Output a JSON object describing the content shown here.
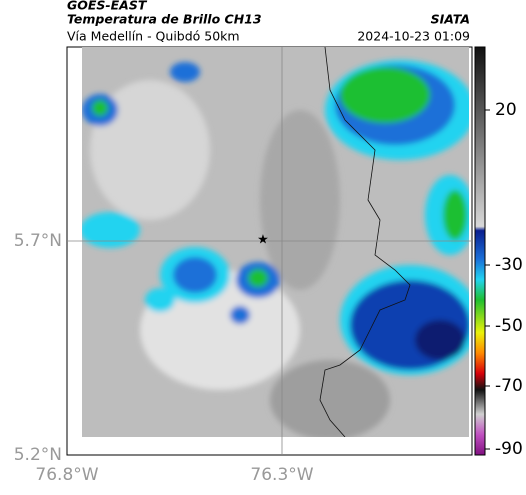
{
  "header": {
    "title": "GOES-EAST",
    "subtitle": "Temperatura de Brillo CH13",
    "source": "SIATA",
    "location": "Vía Medellín - Quibdó 50km",
    "datetime": "2024-10-23 01:09"
  },
  "map": {
    "lat_labels": [
      "5.7°N",
      "5.2°N"
    ],
    "lon_labels": [
      "76.8°W",
      "76.3°W"
    ]
  },
  "colorbar": {
    "ticks": [
      "20",
      "-30",
      "-50",
      "-70",
      "-90"
    ]
  }
}
